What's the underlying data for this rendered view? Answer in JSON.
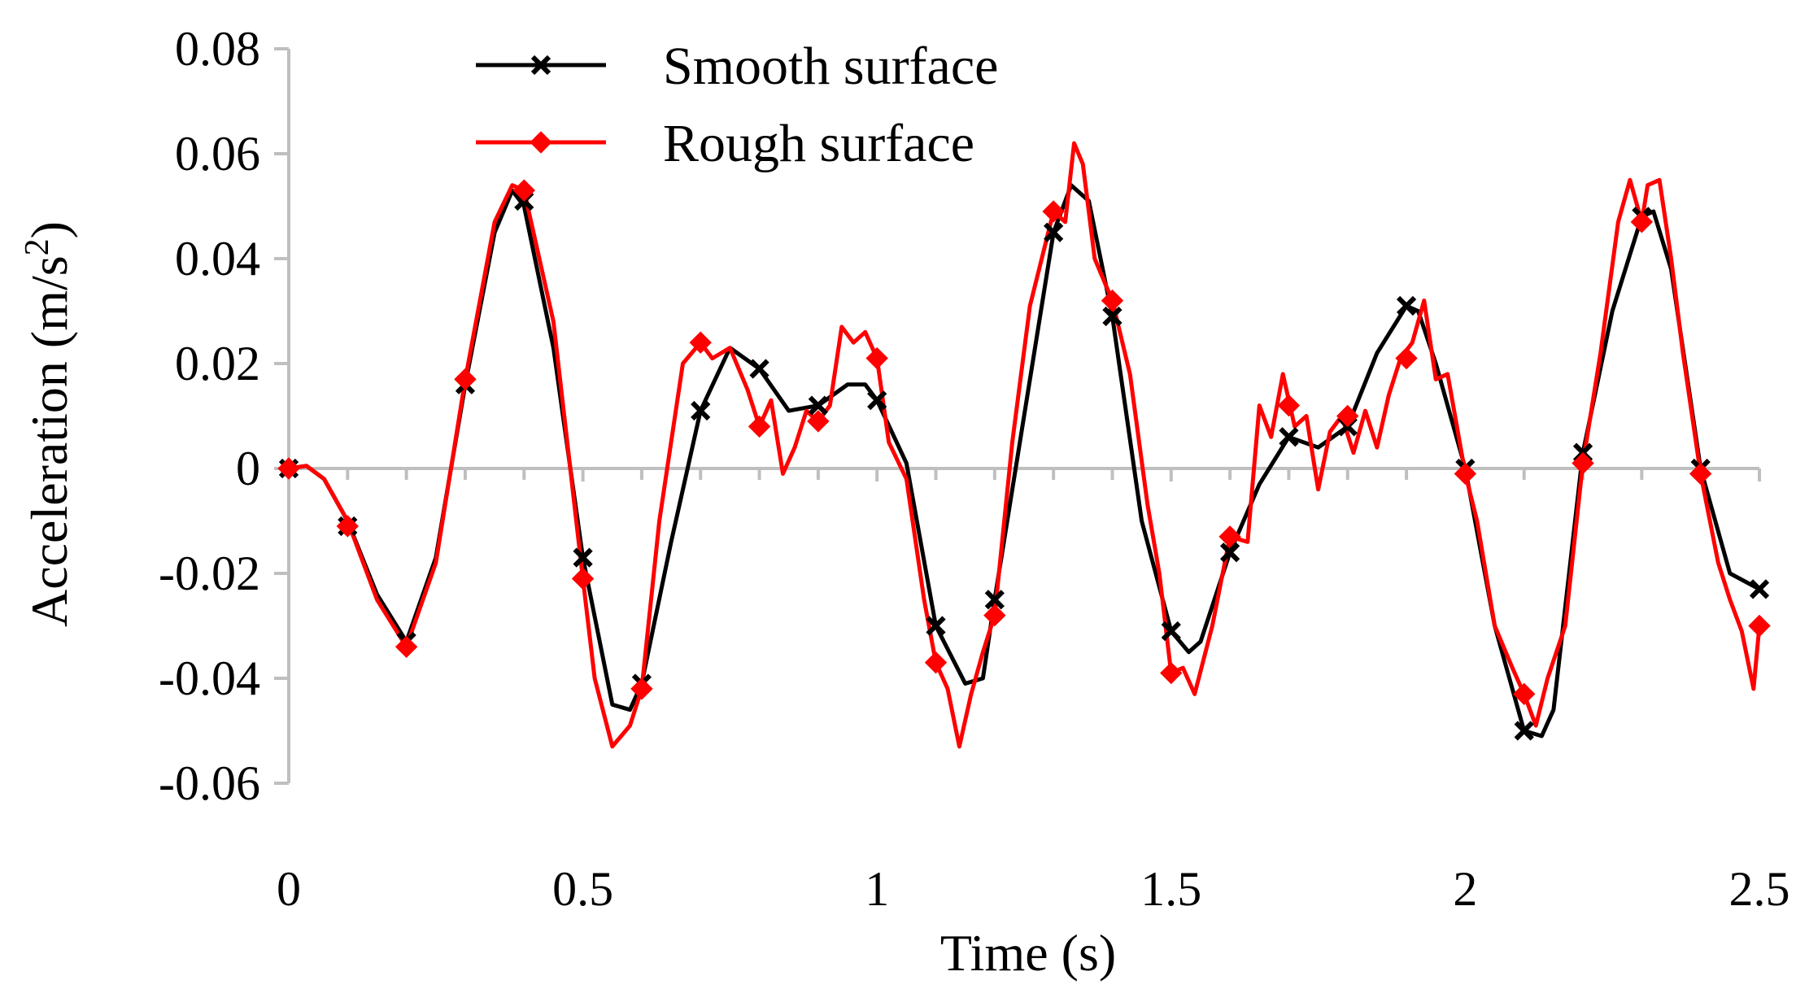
{
  "chart_data": {
    "type": "line",
    "title": "",
    "xlabel": "Time (s)",
    "ylabel": "Acceleration (m/s²)",
    "ylabel_parts": {
      "main": "Acceleration (m/s",
      "sup": "2",
      "end": ")"
    },
    "xlim": [
      0,
      2.5
    ],
    "ylim": [
      -0.06,
      0.08
    ],
    "x_ticks": [
      0,
      0.5,
      1,
      1.5,
      2,
      2.5
    ],
    "x_tick_labels": [
      "0",
      "0.5",
      "1",
      "1.5",
      "2",
      "2.5"
    ],
    "x_minor_step": 0.1,
    "y_ticks": [
      -0.06,
      -0.04,
      -0.02,
      0,
      0.02,
      0.04,
      0.06,
      0.08
    ],
    "y_tick_labels": [
      "-0.06",
      "-0.04",
      "-0.02",
      "0",
      "0.02",
      "0.04",
      "0.06",
      "0.08"
    ],
    "grid": false,
    "legend_position": "top-left",
    "colors": {
      "axis": "#bfbfbf",
      "smooth": "#000000",
      "rough": "#ff0000"
    },
    "series": [
      {
        "name": "Smooth surface",
        "marker": "x",
        "color": "#000000",
        "marker_x": [
          0,
          0.1,
          0.2,
          0.3,
          0.4,
          0.5,
          0.6,
          0.7,
          0.8,
          0.9,
          1.0,
          1.1,
          1.2,
          1.3,
          1.4,
          1.5,
          1.6,
          1.7,
          1.8,
          1.9,
          2.0,
          2.1,
          2.2,
          2.3,
          2.4,
          2.5
        ],
        "marker_y": [
          0,
          -0.011,
          -0.033,
          0.016,
          0.051,
          -0.017,
          -0.041,
          0.011,
          0.019,
          0.012,
          0.013,
          -0.03,
          -0.025,
          0.045,
          0.029,
          -0.031,
          -0.016,
          0.006,
          0.008,
          0.031,
          0,
          -0.05,
          0.003,
          0.048,
          0,
          -0.023
        ],
        "curve_x": [
          0,
          0.03,
          0.06,
          0.1,
          0.15,
          0.2,
          0.25,
          0.3,
          0.35,
          0.38,
          0.4,
          0.45,
          0.5,
          0.55,
          0.58,
          0.6,
          0.65,
          0.7,
          0.75,
          0.8,
          0.85,
          0.9,
          0.95,
          0.98,
          1.0,
          1.05,
          1.1,
          1.15,
          1.18,
          1.2,
          1.25,
          1.3,
          1.33,
          1.36,
          1.4,
          1.45,
          1.5,
          1.53,
          1.55,
          1.6,
          1.65,
          1.7,
          1.75,
          1.8,
          1.85,
          1.9,
          1.92,
          1.95,
          2.0,
          2.05,
          2.1,
          2.13,
          2.15,
          2.2,
          2.25,
          2.3,
          2.32,
          2.35,
          2.4,
          2.45,
          2.5
        ],
        "curve_y": [
          0,
          0.0005,
          -0.002,
          -0.01,
          -0.024,
          -0.033,
          -0.017,
          0.016,
          0.045,
          0.053,
          0.05,
          0.023,
          -0.017,
          -0.045,
          -0.046,
          -0.041,
          -0.014,
          0.011,
          0.023,
          0.019,
          0.011,
          0.012,
          0.016,
          0.016,
          0.013,
          0.001,
          -0.03,
          -0.041,
          -0.04,
          -0.025,
          0.01,
          0.045,
          0.054,
          0.051,
          0.029,
          -0.01,
          -0.031,
          -0.035,
          -0.033,
          -0.016,
          -0.003,
          0.006,
          0.004,
          0.008,
          0.022,
          0.031,
          0.03,
          0.02,
          0,
          -0.03,
          -0.05,
          -0.051,
          -0.046,
          0.003,
          0.03,
          0.048,
          0.049,
          0.038,
          0,
          -0.02,
          -0.023
        ]
      },
      {
        "name": "Rough surface",
        "marker": "diamond",
        "color": "#ff0000",
        "marker_x": [
          0,
          0.1,
          0.2,
          0.3,
          0.4,
          0.5,
          0.6,
          0.7,
          0.8,
          0.9,
          1.0,
          1.1,
          1.2,
          1.3,
          1.4,
          1.5,
          1.6,
          1.7,
          1.8,
          1.9,
          2.0,
          2.1,
          2.2,
          2.3,
          2.4,
          2.5
        ],
        "marker_y": [
          0,
          -0.011,
          -0.034,
          0.017,
          0.053,
          -0.021,
          -0.042,
          0.024,
          0.008,
          0.009,
          0.021,
          -0.037,
          -0.028,
          0.049,
          0.032,
          -0.039,
          -0.013,
          0.012,
          0.01,
          0.021,
          -0.001,
          -0.043,
          0.001,
          0.047,
          -0.001,
          -0.03
        ],
        "curve_x": [
          0,
          0.03,
          0.06,
          0.1,
          0.15,
          0.2,
          0.25,
          0.3,
          0.35,
          0.38,
          0.4,
          0.45,
          0.5,
          0.52,
          0.55,
          0.58,
          0.6,
          0.63,
          0.67,
          0.7,
          0.72,
          0.75,
          0.78,
          0.8,
          0.82,
          0.84,
          0.86,
          0.88,
          0.9,
          0.92,
          0.94,
          0.96,
          0.98,
          1.0,
          1.02,
          1.05,
          1.08,
          1.1,
          1.12,
          1.14,
          1.16,
          1.18,
          1.2,
          1.23,
          1.26,
          1.3,
          1.32,
          1.335,
          1.35,
          1.37,
          1.4,
          1.43,
          1.46,
          1.48,
          1.5,
          1.52,
          1.54,
          1.57,
          1.6,
          1.63,
          1.65,
          1.67,
          1.69,
          1.71,
          1.73,
          1.75,
          1.77,
          1.79,
          1.81,
          1.83,
          1.85,
          1.87,
          1.89,
          1.91,
          1.93,
          1.95,
          1.97,
          2.0,
          2.02,
          2.05,
          2.08,
          2.1,
          2.12,
          2.14,
          2.17,
          2.2,
          2.23,
          2.26,
          2.28,
          2.3,
          2.31,
          2.33,
          2.35,
          2.37,
          2.4,
          2.43,
          2.45,
          2.47,
          2.49,
          2.5
        ],
        "curve_y": [
          0,
          0.0005,
          -0.002,
          -0.01,
          -0.025,
          -0.034,
          -0.018,
          0.017,
          0.047,
          0.054,
          0.053,
          0.028,
          -0.021,
          -0.04,
          -0.053,
          -0.049,
          -0.042,
          -0.01,
          0.02,
          0.024,
          0.021,
          0.023,
          0.015,
          0.008,
          0.013,
          -0.001,
          0.004,
          0.011,
          0.009,
          0.012,
          0.027,
          0.024,
          0.026,
          0.021,
          0.005,
          -0.002,
          -0.025,
          -0.037,
          -0.042,
          -0.053,
          -0.043,
          -0.035,
          -0.028,
          0.005,
          0.031,
          0.049,
          0.047,
          0.062,
          0.058,
          0.04,
          0.032,
          0.018,
          -0.007,
          -0.02,
          -0.039,
          -0.038,
          -0.043,
          -0.03,
          -0.013,
          -0.014,
          0.012,
          0.006,
          0.018,
          0.008,
          0.01,
          -0.004,
          0.007,
          0.01,
          0.003,
          0.011,
          0.004,
          0.014,
          0.021,
          0.024,
          0.032,
          0.017,
          0.018,
          -0.001,
          -0.01,
          -0.03,
          -0.038,
          -0.043,
          -0.049,
          -0.04,
          -0.03,
          0.001,
          0.022,
          0.047,
          0.055,
          0.047,
          0.054,
          0.055,
          0.04,
          0.022,
          -0.001,
          -0.018,
          -0.025,
          -0.031,
          -0.042,
          -0.03
        ]
      }
    ]
  }
}
